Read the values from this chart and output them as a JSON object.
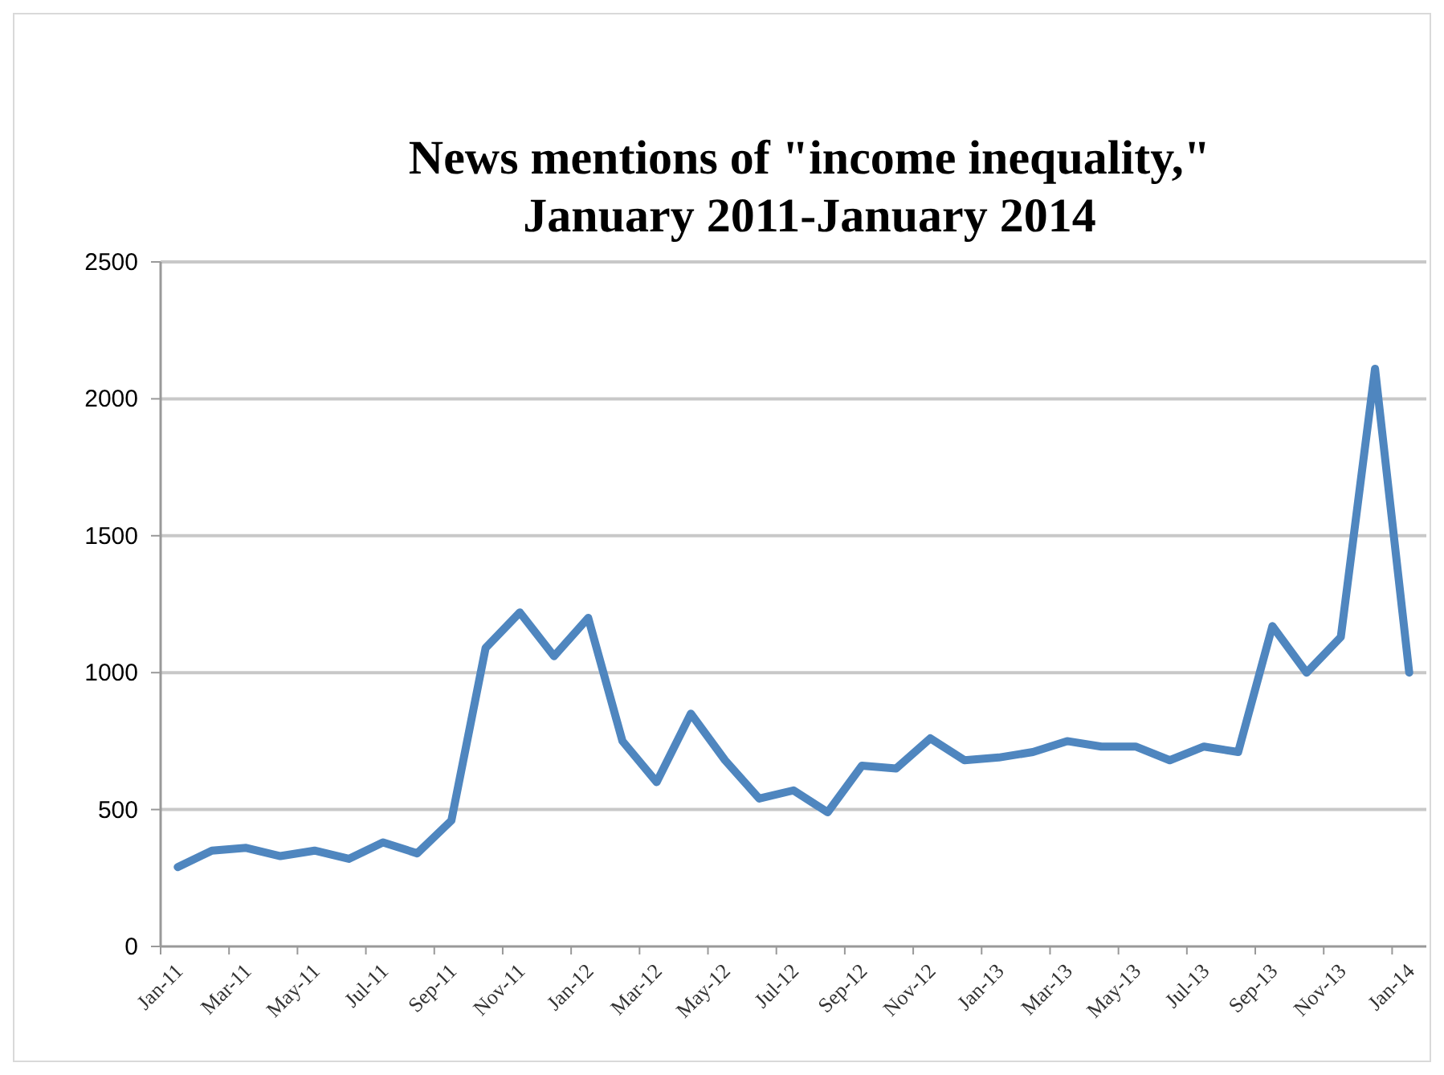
{
  "chart_data": {
    "type": "line",
    "title": "News mentions of \"income inequality,\"\nJanuary 2011-January 2014",
    "categories": [
      "Jan-11",
      null,
      "Mar-11",
      null,
      "May-11",
      null,
      "Jul-11",
      null,
      "Sep-11",
      null,
      "Nov-11",
      null,
      "Jan-12",
      null,
      "Mar-12",
      null,
      "May-12",
      null,
      "Jul-12",
      null,
      "Sep-12",
      null,
      "Nov-12",
      null,
      "Jan-13",
      null,
      "Mar-13",
      null,
      "May-13",
      null,
      "Jul-13",
      null,
      "Sep-13",
      null,
      "Nov-13",
      null,
      "Jan-14"
    ],
    "series": [
      {
        "color": "#4f86bf",
        "values": [
          290,
          350,
          360,
          330,
          350,
          320,
          380,
          340,
          460,
          1090,
          1220,
          1060,
          1200,
          750,
          600,
          850,
          680,
          540,
          570,
          490,
          660,
          650,
          760,
          680,
          690,
          710,
          750,
          730,
          730,
          680,
          730,
          710,
          1170,
          1000,
          1130,
          2110,
          1000
        ]
      }
    ],
    "ylim": [
      0,
      2500
    ],
    "yticks": [
      0,
      500,
      1000,
      1500,
      2000,
      2500
    ],
    "grid": "y",
    "marker": "none",
    "line_style": "solid"
  }
}
